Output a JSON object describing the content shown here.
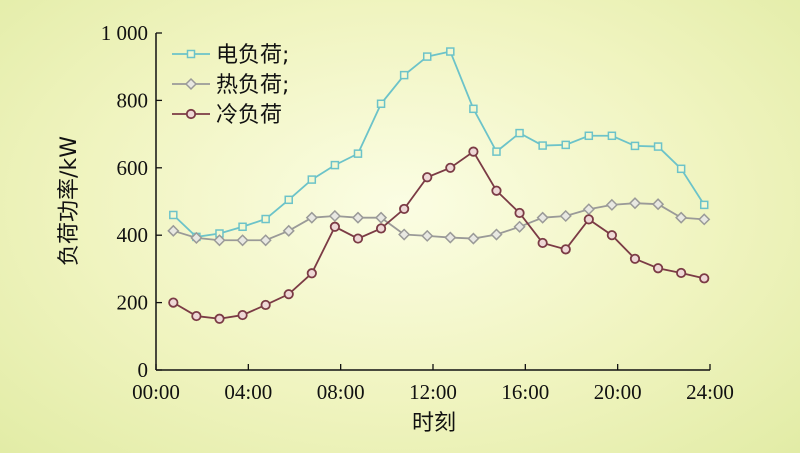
{
  "chart_data": {
    "type": "line",
    "xlabel": "时刻",
    "ylabel": "负荷功率/kW",
    "xlim": [
      0,
      24
    ],
    "ylim": [
      0,
      1000
    ],
    "x_tick_labels": [
      "00:00",
      "04:00",
      "08:00",
      "12:00",
      "16:00",
      "20:00",
      "24:00"
    ],
    "x_tick_values": [
      0,
      4,
      8,
      12,
      16,
      20,
      24
    ],
    "y_tick_labels": [
      "0",
      "200",
      "400",
      "600",
      "800",
      "1 000"
    ],
    "y_tick_values": [
      0,
      200,
      400,
      600,
      800,
      1000
    ],
    "grid": false,
    "legend_position": "top-left",
    "x": [
      0.75,
      1.75,
      2.75,
      3.75,
      4.75,
      5.75,
      6.75,
      7.75,
      8.75,
      9.75,
      10.75,
      11.75,
      12.75,
      13.75,
      14.75,
      15.75,
      16.75,
      17.75,
      18.75,
      19.75,
      20.75,
      21.75,
      22.75
    ],
    "series": [
      {
        "name": "电负荷;",
        "color": "#6cc3c9",
        "marker": "square",
        "values": [
          460,
          395,
          405,
          425,
          448,
          505,
          565,
          608,
          642,
          790,
          875,
          930,
          945,
          775,
          648,
          703,
          666,
          668,
          695,
          695,
          665,
          663,
          597
        ]
      },
      {
        "name": "热负荷;",
        "color": "#9a9a98",
        "marker": "diamond",
        "values": [
          413,
          392,
          385,
          385,
          385,
          413,
          452,
          457,
          452,
          452,
          402,
          398,
          393,
          390,
          402,
          425,
          452,
          457,
          477,
          490,
          495,
          492,
          452
        ]
      },
      {
        "name": "冷负荷",
        "color": "#7b3b45",
        "marker": "circle",
        "values": [
          200,
          160,
          152,
          163,
          193,
          225,
          287,
          425,
          390,
          420,
          478,
          572,
          600,
          648,
          532,
          466,
          377,
          358,
          447,
          400,
          330,
          302,
          288
        ]
      }
    ],
    "extra_points": [
      {
        "series": "电负荷;",
        "x": 23.75,
        "y": 490
      },
      {
        "series": "热负荷;",
        "x": 23.75,
        "y": 447
      },
      {
        "series": "冷负荷",
        "x": 23.75,
        "y": 272
      }
    ]
  }
}
